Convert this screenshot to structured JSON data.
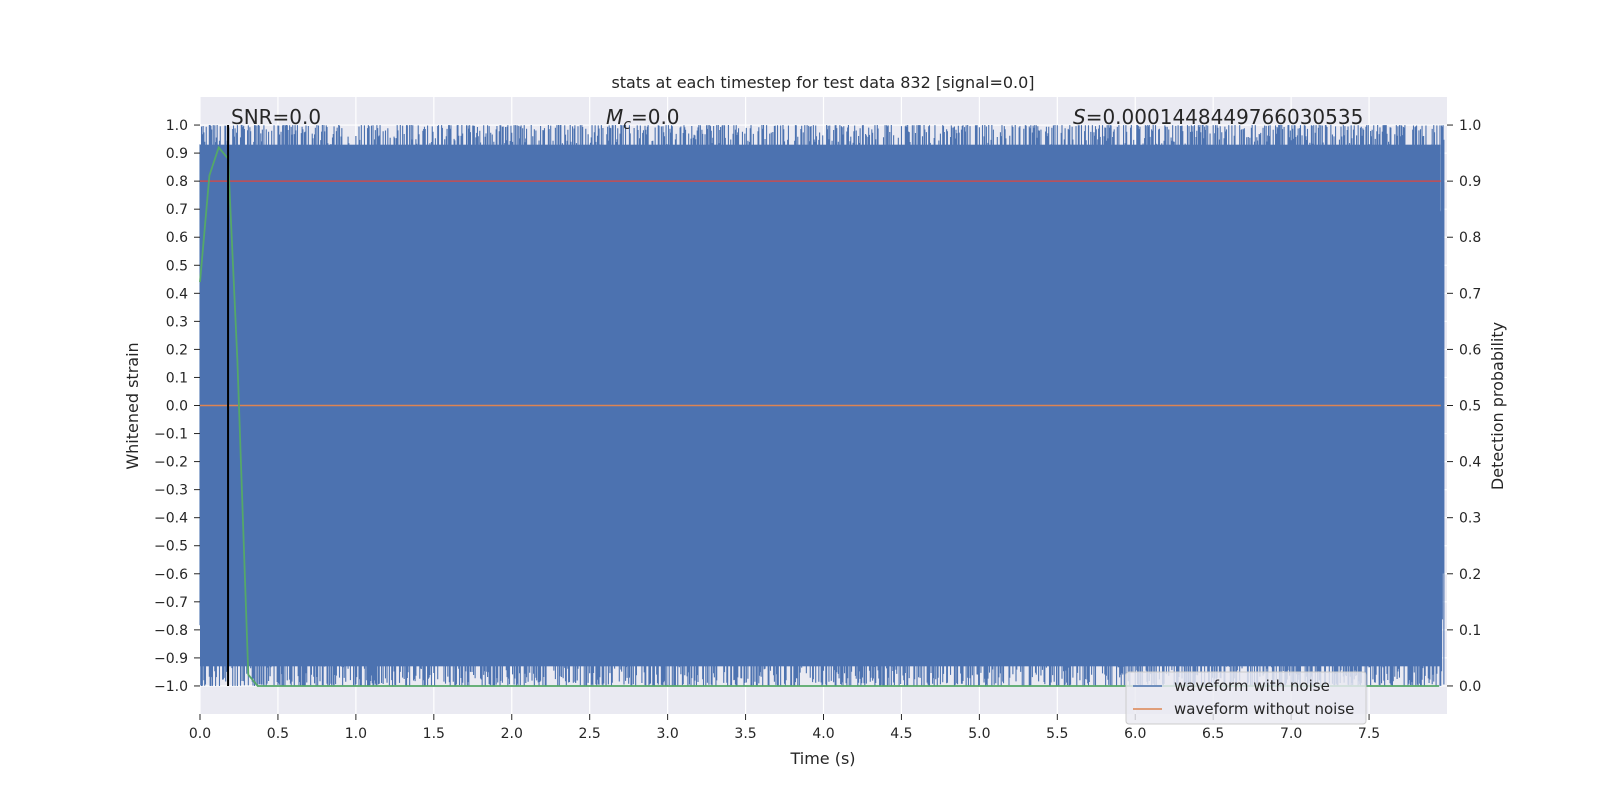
{
  "chart_data": {
    "type": "line",
    "title": "stats at each timestep for test data 832 [signal=0.0]",
    "xlabel": "Time (s)",
    "ylabel": "Whitened strain",
    "y2label": "Detection probability",
    "xlim": [
      0.0,
      8.0
    ],
    "ylim": [
      -1.1,
      1.1
    ],
    "y2lim": [
      -0.05,
      1.05
    ],
    "xticks": [
      "0.0",
      "0.5",
      "1.0",
      "1.5",
      "2.0",
      "2.5",
      "3.0",
      "3.5",
      "4.0",
      "4.5",
      "5.0",
      "5.5",
      "6.0",
      "6.5",
      "7.0",
      "7.5"
    ],
    "yticks": [
      "1.0",
      "0.9",
      "0.8",
      "0.7",
      "0.6",
      "0.5",
      "0.4",
      "0.3",
      "0.2",
      "0.1",
      "0.0",
      "−0.1",
      "−0.2",
      "−0.3",
      "−0.4",
      "−0.5",
      "−0.6",
      "−0.7",
      "−0.8",
      "−0.9",
      "−1.0"
    ],
    "y2ticks": [
      "1.0",
      "0.9",
      "0.8",
      "0.7",
      "0.6",
      "0.5",
      "0.4",
      "0.3",
      "0.2",
      "0.1",
      "0.0"
    ],
    "annotations": {
      "snr": "SNR=0.0",
      "mc_symbol": "M",
      "mc_sub": "c",
      "mc_value": "=0.0",
      "s_symbol": "S",
      "s_value": "=0.0001448449766030535"
    },
    "series": [
      {
        "name": "waveform with noise",
        "color": "#4c72b0",
        "range": [
          -1.0,
          1.0
        ],
        "description": "dense whitened noise clipped to [-1, 1]"
      },
      {
        "name": "waveform without noise",
        "color": "#dd8452",
        "values": "flat at 0.0"
      },
      {
        "name": "detection probability",
        "color": "#55a868",
        "axis": "right",
        "x": [
          0.0,
          0.06,
          0.12,
          0.18,
          0.24,
          0.31,
          0.37,
          0.45,
          1.0,
          2.0,
          4.0,
          6.0,
          7.95
        ],
        "y": [
          0.72,
          0.91,
          0.96,
          0.94,
          0.58,
          0.02,
          0.0,
          0.0,
          0.0,
          0.0,
          0.0,
          0.0,
          0.0
        ]
      },
      {
        "name": "threshold",
        "color": "#c44e52",
        "axis": "right",
        "value": 0.9
      },
      {
        "name": "marker",
        "color": "#000000",
        "x": 0.18
      }
    ],
    "legend": {
      "location": "bottom-right",
      "entries": [
        "waveform with noise",
        "waveform without noise"
      ]
    },
    "grid": true
  }
}
